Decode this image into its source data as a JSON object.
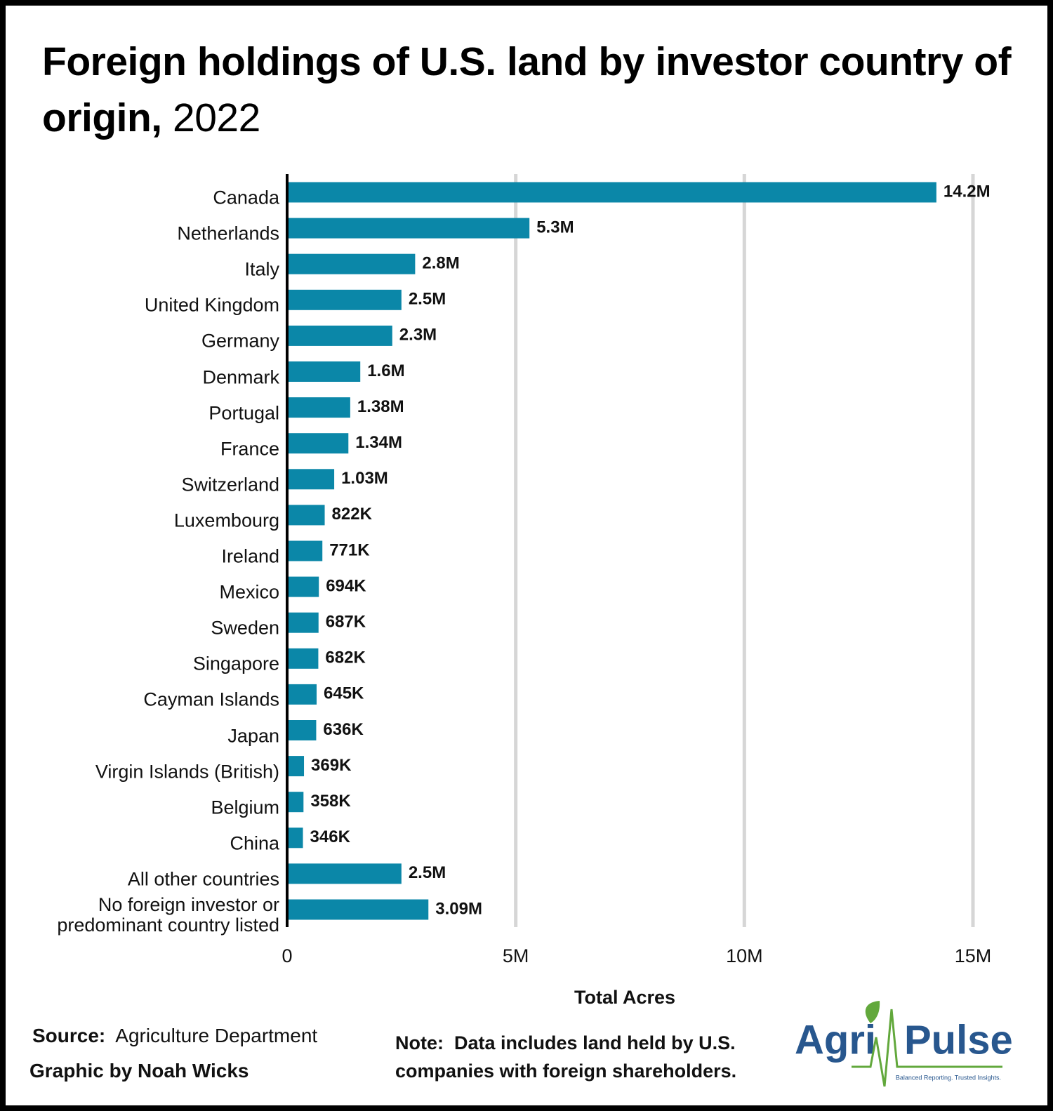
{
  "chart_data": {
    "type": "bar",
    "orientation": "horizontal",
    "title": "Foreign holdings of U.S. land by investor country of origin,",
    "title_year": "2022",
    "x_label": "Total Acres",
    "categories": [
      "Canada",
      "Netherlands",
      "Italy",
      "United Kingdom",
      "Germany",
      "Denmark",
      "Portugal",
      "France",
      "Switzerland",
      "Luxembourg",
      "Ireland",
      "Mexico",
      "Sweden",
      "Singapore",
      "Cayman Islands",
      "Japan",
      "Virgin Islands (British)",
      "Belgium",
      "China",
      "All other countries",
      "No foreign investor or predominant country listed"
    ],
    "values": [
      14200000,
      5300000,
      2800000,
      2500000,
      2300000,
      1600000,
      1380000,
      1340000,
      1030000,
      822000,
      771000,
      694000,
      687000,
      682000,
      645000,
      636000,
      369000,
      358000,
      346000,
      2500000,
      3090000
    ],
    "value_labels": [
      "14.2M",
      "5.3M",
      "2.8M",
      "2.5M",
      "2.3M",
      "1.6M",
      "1.38M",
      "1.34M",
      "1.03M",
      "822K",
      "771K",
      "694K",
      "687K",
      "682K",
      "645K",
      "636K",
      "369K",
      "358K",
      "346K",
      "2.5M",
      "3.09M"
    ],
    "color": "#0b87a8",
    "xlim": [
      0,
      15000000
    ],
    "xticks": [
      0,
      {
        "value": 5000000,
        "label": "5M"
      },
      {
        "value": 10000000,
        "label": "10M"
      },
      {
        "value": 15000000,
        "label": "15M"
      }
    ],
    "grid": true
  },
  "footer": {
    "source_label": "Source:",
    "source": "Agriculture Department",
    "credit": "Graphic by Noah Wicks",
    "note_label": "Note:",
    "note": "Data includes land held by U.S. companies with foreign shareholders."
  },
  "logo": {
    "left": "Agri",
    "right": "Pulse",
    "tagline": "Balanced Reporting. Trusted Insights."
  }
}
